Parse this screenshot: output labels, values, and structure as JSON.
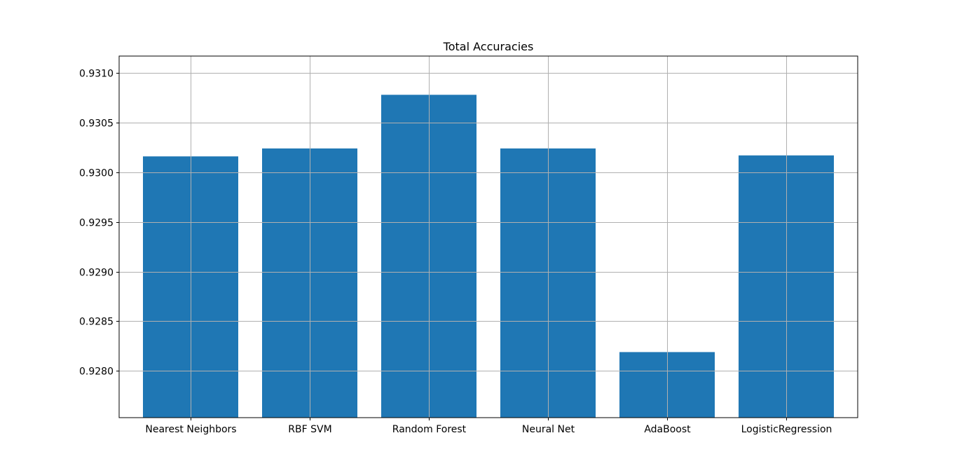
{
  "chart_data": {
    "type": "bar",
    "title": "Total Accuracies",
    "xlabel": "",
    "ylabel": "",
    "categories": [
      "Nearest Neighbors",
      "RBF SVM",
      "Random Forest",
      "Neural Net",
      "AdaBoost",
      "LogisticRegression"
    ],
    "values": [
      0.93016,
      0.93024,
      0.93078,
      0.93024,
      0.92819,
      0.93017
    ],
    "ylim": [
      0.92753,
      0.93117
    ],
    "yticks": [
      0.928,
      0.9285,
      0.929,
      0.9295,
      0.93,
      0.9305,
      0.931
    ],
    "ytick_labels": [
      "0.9280",
      "0.9285",
      "0.9290",
      "0.9295",
      "0.9300",
      "0.9305",
      "0.9310"
    ],
    "grid": true,
    "bar_color": "#1f77b4",
    "grid_color": "#b0b0b0"
  }
}
